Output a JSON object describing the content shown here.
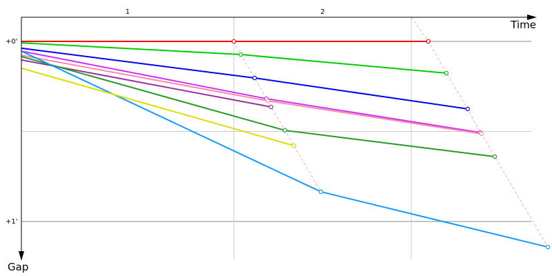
{
  "chart_data": {
    "type": "line",
    "title": "",
    "xlabel": "Time",
    "ylabel": "Gap",
    "x_unit": "seconds",
    "y_unit": "minutes",
    "y_ticks": [
      {
        "value": 0,
        "label": "+0'"
      },
      {
        "value": 0.5,
        "label": ""
      },
      {
        "value": 1,
        "label": "+1'"
      }
    ],
    "lap_marks": [
      {
        "label": "1",
        "start": 0,
        "end": 70.8
      },
      {
        "label": "2",
        "start": 70.8,
        "end": 129.9
      }
    ],
    "grid": true,
    "series": [
      {
        "color": "#ff0000",
        "points": [
          [
            0,
            0
          ],
          [
            70.8,
            0
          ],
          [
            135.6,
            0
          ]
        ]
      },
      {
        "color": "#00cc00",
        "points": [
          [
            0,
            0.008
          ],
          [
            73.1,
            0.073
          ],
          [
            141.6,
            0.176
          ]
        ]
      },
      {
        "color": "#0000ee",
        "points": [
          [
            0,
            0.038
          ],
          [
            77.7,
            0.203
          ],
          [
            148.7,
            0.375
          ]
        ]
      },
      {
        "color": "#cc33ff",
        "points": [
          [
            0,
            0.054
          ],
          [
            81.6,
            0.318
          ],
          [
            152.9,
            0.506
          ]
        ]
      },
      {
        "color": "#ff88aa",
        "points": [
          [
            0,
            0.077
          ],
          [
            82.1,
            0.33
          ],
          [
            153.3,
            0.513
          ]
        ]
      },
      {
        "color": "#993399",
        "points": [
          [
            0,
            0.103
          ],
          [
            83.2,
            0.364
          ]
        ]
      },
      {
        "color": "#229922",
        "points": [
          [
            0,
            0.084
          ],
          [
            87.8,
            0.494
          ],
          [
            157.7,
            0.64
          ]
        ]
      },
      {
        "color": "#1199ff",
        "points": [
          [
            0,
            0.054
          ],
          [
            99.8,
            0.835
          ],
          [
            175.4,
            1.142
          ]
        ]
      },
      {
        "color": "#dddd00",
        "points": [
          [
            0,
            0.149
          ],
          [
            90.8,
            0.579
          ]
        ]
      }
    ],
    "lap_line_color": "#ffaaaa"
  }
}
